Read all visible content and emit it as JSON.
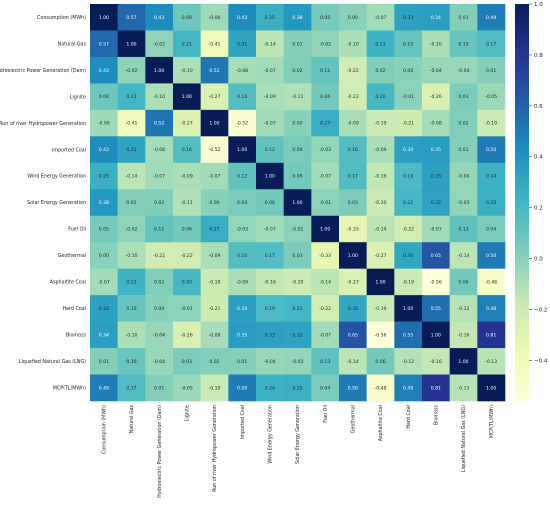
{
  "chart_data": {
    "type": "heatmap",
    "labels": [
      "Consumption (MWh)",
      "Natural Gas",
      "Hydroelectric Power Generation (Dam)",
      "Lignite",
      "Run of river Hydropower Generation",
      "Imported Coal",
      "Wind Energy Generation",
      "Solar Energy Generation",
      "Fuel Oil",
      "Geothermal",
      "Asphaltite Coal",
      "Hard Coal",
      "Biomass",
      "Liquefied Natural Gas (LNG)",
      "MCP(TL/MWh)"
    ],
    "values": [
      [
        1.0,
        0.57,
        0.43,
        0.08,
        -0.06,
        0.43,
        0.25,
        0.38,
        0.05,
        -0.0,
        -0.07,
        0.33,
        0.34,
        0.01,
        0.49
      ],
      [
        0.57,
        1.0,
        -0.02,
        0.21,
        -0.41,
        0.31,
        -0.14,
        0.01,
        -0.02,
        -0.1,
        0.23,
        0.1,
        -0.1,
        0.1,
        0.17
      ],
      [
        0.43,
        -0.02,
        1.0,
        -0.1,
        0.52,
        -0.08,
        -0.07,
        0.02,
        0.11,
        -0.22,
        0.02,
        -0.0,
        -0.04,
        -0.04,
        0.01
      ],
      [
        0.08,
        0.21,
        -0.1,
        1.0,
        -0.27,
        0.16,
        -0.09,
        -0.11,
        0.06,
        -0.22,
        0.2,
        -0.01,
        -0.26,
        0.03,
        -0.05
      ],
      [
        -0.06,
        -0.41,
        0.52,
        -0.27,
        1.0,
        -0.52,
        -0.07,
        0.0,
        0.27,
        -0.09,
        -0.19,
        -0.21,
        -0.08,
        0.02,
        -0.19
      ],
      [
        0.43,
        0.31,
        -0.08,
        0.16,
        -0.52,
        1.0,
        0.12,
        0.04,
        -0.03,
        0.16,
        -0.09,
        0.34,
        0.35,
        0.01,
        0.5
      ],
      [
        0.25,
        -0.14,
        -0.07,
        -0.09,
        -0.07,
        0.12,
        1.0,
        0.06,
        -0.07,
        0.17,
        -0.16,
        0.19,
        0.33,
        -0.04,
        0.24
      ],
      [
        0.38,
        0.01,
        0.02,
        -0.11,
        0.0,
        0.04,
        0.06,
        1.0,
        -0.01,
        0.03,
        -0.2,
        0.21,
        0.32,
        -0.03,
        0.25
      ],
      [
        0.05,
        -0.02,
        0.11,
        0.06,
        0.27,
        -0.03,
        -0.07,
        -0.01,
        1.0,
        -0.33,
        -0.14,
        -0.22,
        -0.07,
        0.13,
        0.04
      ],
      [
        -0.0,
        -0.1,
        -0.22,
        -0.22,
        -0.09,
        0.16,
        0.17,
        0.03,
        -0.33,
        1.0,
        -0.27,
        0.3,
        0.65,
        -0.14,
        0.5
      ],
      [
        -0.07,
        0.23,
        0.02,
        0.2,
        -0.19,
        -0.09,
        -0.16,
        -0.2,
        -0.14,
        -0.27,
        1.0,
        -0.19,
        -0.56,
        0.06,
        -0.48
      ],
      [
        0.33,
        0.1,
        -0.0,
        -0.01,
        -0.21,
        0.34,
        0.19,
        0.21,
        -0.22,
        0.3,
        -0.19,
        1.0,
        0.55,
        -0.12,
        0.48
      ],
      [
        0.34,
        -0.1,
        -0.04,
        -0.26,
        -0.08,
        0.35,
        0.33,
        0.32,
        -0.07,
        0.65,
        -0.56,
        0.55,
        1.0,
        -0.16,
        0.81
      ],
      [
        0.01,
        0.1,
        -0.04,
        0.03,
        0.02,
        0.01,
        -0.04,
        -0.03,
        0.13,
        -0.14,
        0.06,
        -0.12,
        -0.16,
        1.0,
        -0.13
      ],
      [
        0.49,
        0.17,
        0.01,
        -0.05,
        -0.19,
        0.5,
        0.24,
        0.25,
        0.04,
        0.5,
        -0.48,
        0.48,
        0.81,
        -0.13,
        1.0
      ]
    ],
    "colorscale": "YlGnBu",
    "vmin": -0.56,
    "vmax": 1.0,
    "colorbar_ticks": [
      "1.0",
      "0.8",
      "0.6",
      "0.4",
      "0.2",
      "0.0",
      "−0.2",
      "−0.4"
    ],
    "colorbar_tick_values": [
      1.0,
      0.8,
      0.6,
      0.4,
      0.2,
      0.0,
      -0.2,
      -0.4
    ]
  }
}
